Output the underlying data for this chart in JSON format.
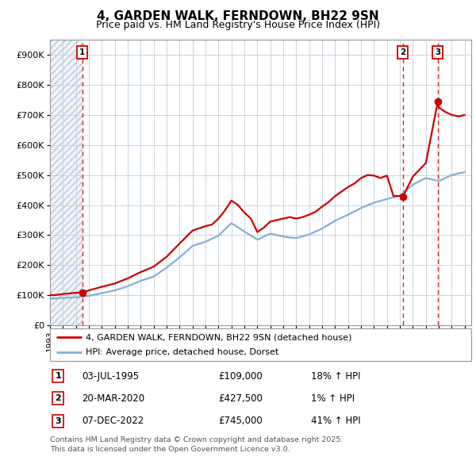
{
  "title": "4, GARDEN WALK, FERNDOWN, BH22 9SN",
  "subtitle": "Price paid vs. HM Land Registry's House Price Index (HPI)",
  "legend_line1": "4, GARDEN WALK, FERNDOWN, BH22 9SN (detached house)",
  "legend_line2": "HPI: Average price, detached house, Dorset",
  "sale_color": "#cc0000",
  "hpi_color": "#85afd4",
  "vline_color": "#cc0000",
  "grid_color": "#c8d4e0",
  "transactions": [
    {
      "label": "1",
      "date": "03-JUL-1995",
      "price": 109000,
      "pct": "18% ↑ HPI",
      "x_year": 1995.5
    },
    {
      "label": "2",
      "date": "20-MAR-2020",
      "price": 427500,
      "pct": "1% ↑ HPI",
      "x_year": 2020.22
    },
    {
      "label": "3",
      "date": "07-DEC-2022",
      "price": 745000,
      "pct": "41% ↑ HPI",
      "x_year": 2022.92
    }
  ],
  "footer": "Contains HM Land Registry data © Crown copyright and database right 2025.\nThis data is licensed under the Open Government Licence v3.0.",
  "ylim": [
    0,
    950000
  ],
  "xlim_start": 1993.0,
  "xlim_end": 2025.5,
  "ytick_interval": 100000,
  "hpi_years": [
    1993,
    1994,
    1995,
    1996,
    1997,
    1998,
    1999,
    2000,
    2001,
    2002,
    2003,
    2004,
    2005,
    2006,
    2007,
    2008,
    2009,
    2010,
    2011,
    2012,
    2013,
    2014,
    2015,
    2016,
    2017,
    2018,
    2019,
    2020,
    2021,
    2022,
    2023,
    2024,
    2025
  ],
  "hpi_values": [
    88000,
    91000,
    93000,
    98000,
    107000,
    116000,
    130000,
    148000,
    162000,
    192000,
    226000,
    264000,
    278000,
    298000,
    340000,
    312000,
    285000,
    305000,
    295000,
    290000,
    302000,
    322000,
    348000,
    368000,
    390000,
    408000,
    420000,
    432000,
    468000,
    490000,
    480000,
    500000,
    510000
  ],
  "sale_years": [
    1993,
    1993.5,
    1994,
    1994.5,
    1995,
    1995.5,
    1996,
    1997,
    1998,
    1999,
    2000,
    2001,
    2002,
    2003,
    2004,
    2005,
    2005.5,
    2006,
    2006.5,
    2007,
    2007.5,
    2008,
    2008.5,
    2009,
    2009.5,
    2010,
    2010.5,
    2011,
    2011.5,
    2012,
    2012.5,
    2013,
    2013.5,
    2014,
    2014.5,
    2015,
    2015.5,
    2016,
    2016.5,
    2017,
    2017.5,
    2018,
    2018.5,
    2019,
    2019.5,
    2020,
    2020.22,
    2021,
    2022,
    2022.92,
    2023,
    2023.5,
    2024,
    2024.5,
    2025
  ],
  "sale_values": [
    100000,
    101000,
    104000,
    106000,
    108000,
    109000,
    116000,
    128000,
    139000,
    156000,
    177000,
    195000,
    228000,
    272000,
    315000,
    330000,
    335000,
    355000,
    382000,
    415000,
    400000,
    375000,
    355000,
    310000,
    325000,
    345000,
    350000,
    355000,
    360000,
    355000,
    360000,
    368000,
    378000,
    395000,
    410000,
    430000,
    445000,
    460000,
    472000,
    490000,
    500000,
    498000,
    490000,
    498000,
    430000,
    430000,
    427500,
    495000,
    540000,
    745000,
    725000,
    710000,
    700000,
    695000,
    700000
  ]
}
